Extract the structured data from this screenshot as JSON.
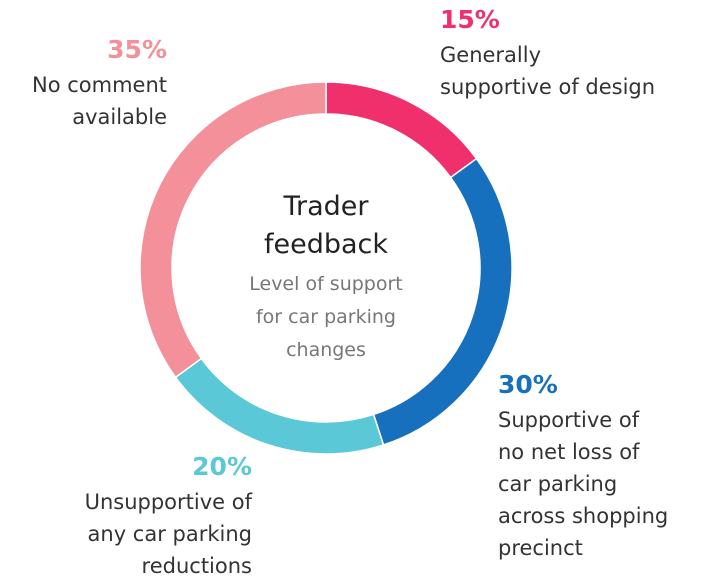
{
  "chart_data": {
    "type": "donut",
    "title": "Trader\nfeedback",
    "subtitle": "Level of support\nfor car parking\nchanges",
    "categories": [
      "Generally\nsupportive of design",
      "Supportive of\nno net loss of\ncar parking\nacross shopping\nprecinct",
      "Unsupportive of\nany car parking\nreductions",
      "No comment\navailable"
    ],
    "values": [
      15,
      30,
      20,
      35
    ],
    "value_labels": [
      "15%",
      "30%",
      "20%",
      "35%"
    ],
    "colors": [
      "#ef306c",
      "#1670bd",
      "#5ac8d6",
      "#f3909a"
    ]
  }
}
